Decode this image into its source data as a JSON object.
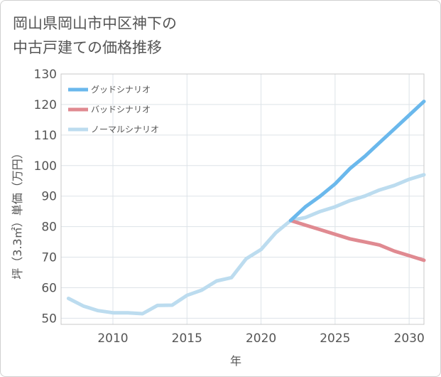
{
  "title_lines": [
    "岡山県岡山市中区神下の",
    "中古戸建ての価格推移"
  ],
  "chart_data": {
    "type": "line",
    "title": "岡山県岡山市中区神下の中古戸建ての価格推移",
    "xlabel": "年",
    "ylabel": "坪（3.3㎡）単価（万円）",
    "xlim": [
      2006.5,
      2031
    ],
    "ylim": [
      48,
      130
    ],
    "x_ticks": [
      2010,
      2015,
      2020,
      2025,
      2030
    ],
    "y_ticks": [
      50,
      60,
      70,
      80,
      90,
      100,
      110,
      120,
      130
    ],
    "grid": true,
    "legend_position": "top-left",
    "series": [
      {
        "name": "グッドシナリオ",
        "color": "#6ab8ec",
        "x": [
          2022,
          2023,
          2024,
          2025,
          2026,
          2027,
          2028,
          2029,
          2030,
          2031
        ],
        "values": [
          82.0,
          86.5,
          90.0,
          94.0,
          99.0,
          103.0,
          107.5,
          112.0,
          116.5,
          121.0
        ]
      },
      {
        "name": "バッドシナリオ",
        "color": "#e08a91",
        "x": [
          2022,
          2023,
          2024,
          2025,
          2026,
          2027,
          2028,
          2029,
          2030,
          2031
        ],
        "values": [
          82.0,
          80.5,
          79.0,
          77.5,
          76.0,
          75.0,
          74.0,
          72.0,
          70.5,
          69.0
        ]
      },
      {
        "name": "ノーマルシナリオ",
        "color": "#bcdcef",
        "x": [
          2007,
          2008,
          2009,
          2010,
          2011,
          2012,
          2013,
          2014,
          2015,
          2016,
          2017,
          2018,
          2019,
          2020,
          2021,
          2022,
          2023,
          2024,
          2025,
          2026,
          2027,
          2028,
          2029,
          2030,
          2031
        ],
        "values": [
          56.5,
          54.0,
          52.5,
          51.8,
          51.8,
          51.5,
          54.2,
          54.3,
          57.5,
          59.2,
          62.2,
          63.3,
          69.5,
          72.5,
          78.0,
          82.0,
          83.0,
          85.0,
          86.5,
          88.5,
          90.0,
          92.0,
          93.5,
          95.5,
          97.0
        ]
      }
    ]
  }
}
